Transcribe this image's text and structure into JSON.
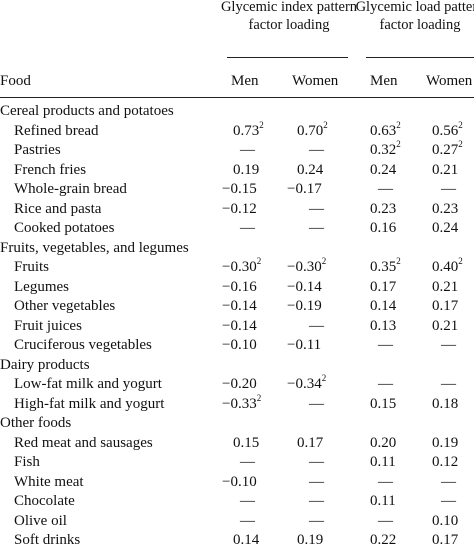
{
  "header": {
    "gi_title": "Glycemic index pattern factor loading",
    "gl_title": "Glycemic load pattern factor loading",
    "food_label": "Food",
    "col_men": "Men",
    "col_women": "Women"
  },
  "rows": [
    {
      "type": "group",
      "label": "Cereal products and potatoes"
    },
    {
      "type": "item",
      "label": "Refined bread",
      "v": [
        "0.73",
        "0.70",
        "0.63",
        "0.56"
      ],
      "sup": [
        "2",
        "2",
        "2",
        "2"
      ]
    },
    {
      "type": "item",
      "label": "Pastries",
      "v": [
        "—",
        "—",
        "0.32",
        "0.27"
      ],
      "sup": [
        "",
        "",
        "2",
        "2"
      ]
    },
    {
      "type": "item",
      "label": "French fries",
      "v": [
        "0.19",
        "0.24",
        "0.24",
        "0.21"
      ],
      "sup": [
        "",
        "",
        "",
        ""
      ]
    },
    {
      "type": "item",
      "label": "Whole-grain bread",
      "v": [
        "−0.15",
        "−0.17",
        "—",
        "—"
      ],
      "sup": [
        "",
        "",
        "",
        ""
      ]
    },
    {
      "type": "item",
      "label": "Rice and pasta",
      "v": [
        "−0.12",
        "—",
        "0.23",
        "0.23"
      ],
      "sup": [
        "",
        "",
        "",
        ""
      ]
    },
    {
      "type": "item",
      "label": "Cooked potatoes",
      "v": [
        "—",
        "—",
        "0.16",
        "0.24"
      ],
      "sup": [
        "",
        "",
        "",
        ""
      ]
    },
    {
      "type": "group",
      "label": "Fruits, vegetables, and legumes"
    },
    {
      "type": "item",
      "label": "Fruits",
      "v": [
        "−0.30",
        "−0.30",
        "0.35",
        "0.40"
      ],
      "sup": [
        "2",
        "2",
        "2",
        "2"
      ]
    },
    {
      "type": "item",
      "label": "Legumes",
      "v": [
        "−0.16",
        "−0.14",
        "0.17",
        "0.21"
      ],
      "sup": [
        "",
        "",
        "",
        ""
      ]
    },
    {
      "type": "item",
      "label": "Other vegetables",
      "v": [
        "−0.14",
        "−0.19",
        "0.14",
        "0.17"
      ],
      "sup": [
        "",
        "",
        "",
        ""
      ]
    },
    {
      "type": "item",
      "label": "Fruit juices",
      "v": [
        "−0.14",
        "—",
        "0.13",
        "0.21"
      ],
      "sup": [
        "",
        "",
        "",
        ""
      ]
    },
    {
      "type": "item",
      "label": "Cruciferous vegetables",
      "v": [
        "−0.10",
        "−0.11",
        "—",
        "—"
      ],
      "sup": [
        "",
        "",
        "",
        ""
      ]
    },
    {
      "type": "group",
      "label": "Dairy products"
    },
    {
      "type": "item",
      "label": "Low-fat milk and yogurt",
      "v": [
        "−0.20",
        "−0.34",
        "—",
        "—"
      ],
      "sup": [
        "",
        "2",
        "",
        ""
      ]
    },
    {
      "type": "item",
      "label": "High-fat milk and yogurt",
      "v": [
        "−0.33",
        "—",
        "0.15",
        "0.18"
      ],
      "sup": [
        "2",
        "",
        "",
        ""
      ]
    },
    {
      "type": "group",
      "label": "Other foods"
    },
    {
      "type": "item",
      "label": "Red meat and sausages",
      "v": [
        "0.15",
        "0.17",
        "0.20",
        "0.19"
      ],
      "sup": [
        "",
        "",
        "",
        ""
      ]
    },
    {
      "type": "item",
      "label": "Fish",
      "v": [
        "—",
        "—",
        "0.11",
        "0.12"
      ],
      "sup": [
        "",
        "",
        "",
        ""
      ]
    },
    {
      "type": "item",
      "label": "White meat",
      "v": [
        "−0.10",
        "—",
        "—",
        "—"
      ],
      "sup": [
        "",
        "",
        "",
        ""
      ]
    },
    {
      "type": "item",
      "label": "Chocolate",
      "v": [
        "—",
        "—",
        "0.11",
        "—"
      ],
      "sup": [
        "",
        "",
        "",
        ""
      ]
    },
    {
      "type": "item",
      "label": "Olive oil",
      "v": [
        "—",
        "—",
        "—",
        "0.10"
      ],
      "sup": [
        "",
        "",
        "",
        ""
      ]
    },
    {
      "type": "item",
      "label": "Soft drinks",
      "v": [
        "0.14",
        "0.19",
        "0.22",
        "0.17"
      ],
      "sup": [
        "",
        "",
        "",
        ""
      ]
    }
  ]
}
